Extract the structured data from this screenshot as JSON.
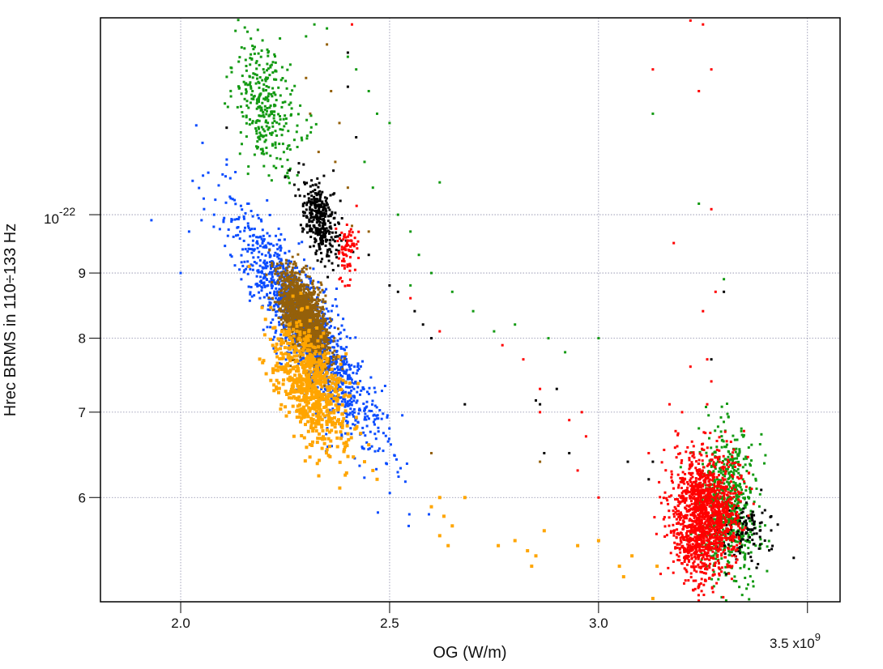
{
  "chart_data": {
    "type": "scatter",
    "title": "",
    "xlabel": "OG (W/m)",
    "ylabel": "Hrec BRMS in 110÷133 Hz",
    "x_scale": "linear",
    "y_scale": "log",
    "x_multiplier_label": "3.5 x10",
    "x_multiplier_exp": "9",
    "y_top_label": "10",
    "y_top_exp": "-22",
    "xlim": [
      1.808,
      3.578
    ],
    "ylim": [
      0.497,
      1.427
    ],
    "y_units": "1e-22",
    "x_units": "1e9 W/m",
    "grid": true,
    "x_ticks": [
      {
        "value": 2.0,
        "label": "2.0"
      },
      {
        "value": 2.5,
        "label": "2.5"
      },
      {
        "value": 3.0,
        "label": "3.0"
      }
    ],
    "y_ticks": [
      {
        "value": 1.0,
        "label": ""
      },
      {
        "value": 0.9,
        "label": "9"
      },
      {
        "value": 0.8,
        "label": "8"
      },
      {
        "value": 0.7,
        "label": "7"
      },
      {
        "value": 0.6,
        "label": "6"
      }
    ],
    "series": [
      {
        "name": "blue",
        "color": "#0a4cff",
        "marker_size": 3,
        "clusters": [
          {
            "cx": 2.3,
            "cy": 0.815,
            "sx": 0.085,
            "sly": 0.045,
            "rho": -0.88,
            "n": 1500
          }
        ],
        "points": [
          [
            1.93,
            0.99
          ],
          [
            2.05,
            0.99
          ],
          [
            2.08,
            1.0
          ],
          [
            2.12,
            1.03
          ],
          [
            2.0,
            0.9
          ],
          [
            2.02,
            0.97
          ],
          [
            2.16,
            1.02
          ]
        ]
      },
      {
        "name": "brown",
        "color": "#94600a",
        "marker_size": 3,
        "clusters": [
          {
            "cx": 2.295,
            "cy": 0.83,
            "sx": 0.03,
            "sly": 0.018,
            "rho": -0.6,
            "n": 1500
          }
        ],
        "points": [
          [
            2.3,
            1.28
          ],
          [
            2.36,
            1.25
          ],
          [
            2.38,
            1.18
          ],
          [
            2.33,
            1.12
          ],
          [
            2.37,
            1.1
          ],
          [
            2.31,
            1.2
          ],
          [
            2.4,
            1.05
          ],
          [
            2.45,
            0.97
          ],
          [
            2.28,
            0.9
          ],
          [
            2.22,
            0.86
          ],
          [
            2.35,
            1.36
          ],
          [
            2.6,
            0.65
          ],
          [
            2.86,
            0.64
          ],
          [
            2.41,
            0.98
          ]
        ]
      },
      {
        "name": "orange",
        "color": "#ffa500",
        "marker_size": 4,
        "clusters": [
          {
            "cx": 2.31,
            "cy": 0.735,
            "sx": 0.045,
            "sly": 0.025,
            "rho": -0.55,
            "n": 700
          }
        ],
        "points": [
          [
            2.42,
            0.68
          ],
          [
            2.45,
            0.66
          ],
          [
            2.44,
            0.64
          ],
          [
            2.46,
            0.63
          ],
          [
            2.47,
            0.62
          ],
          [
            2.62,
            0.6
          ],
          [
            2.6,
            0.59
          ],
          [
            2.63,
            0.58
          ],
          [
            2.65,
            0.57
          ],
          [
            2.68,
            0.6
          ],
          [
            2.62,
            0.56
          ],
          [
            2.76,
            0.55
          ],
          [
            2.8,
            0.555
          ],
          [
            2.83,
            0.545
          ],
          [
            2.85,
            0.54
          ],
          [
            2.84,
            0.53
          ],
          [
            2.87,
            0.565
          ],
          [
            2.95,
            0.55
          ],
          [
            3.0,
            0.555
          ],
          [
            3.05,
            0.53
          ],
          [
            3.06,
            0.52
          ],
          [
            3.08,
            0.54
          ],
          [
            3.14,
            0.53
          ],
          [
            3.13,
            0.5
          ],
          [
            2.64,
            0.55
          ]
        ]
      },
      {
        "name": "green",
        "color": "#139a13",
        "marker_size": 3,
        "clusters": [
          {
            "cx": 2.2,
            "cy": 1.215,
            "sx": 0.04,
            "sly": 0.025,
            "rho": -0.3,
            "n": 330
          },
          {
            "cx": 3.31,
            "cy": 0.59,
            "sx": 0.035,
            "sly": 0.03,
            "rho": 0,
            "n": 650
          }
        ],
        "points": [
          [
            2.3,
            1.38
          ],
          [
            2.35,
            1.4
          ],
          [
            2.32,
            1.41
          ],
          [
            2.4,
            1.33
          ],
          [
            2.42,
            1.3
          ],
          [
            2.45,
            1.25
          ],
          [
            2.47,
            1.2
          ],
          [
            2.5,
            1.18
          ],
          [
            2.44,
            1.1
          ],
          [
            2.46,
            1.05
          ],
          [
            2.52,
            1.0
          ],
          [
            2.55,
            0.97
          ],
          [
            2.57,
            0.93
          ],
          [
            2.6,
            0.9
          ],
          [
            2.62,
            1.06
          ],
          [
            2.65,
            0.87
          ],
          [
            2.7,
            0.84
          ],
          [
            2.75,
            0.81
          ],
          [
            2.8,
            0.82
          ],
          [
            2.88,
            0.8
          ],
          [
            2.92,
            0.78
          ],
          [
            3.0,
            0.8
          ],
          [
            3.13,
            1.2
          ],
          [
            3.24,
            1.02
          ],
          [
            3.3,
            0.89
          ],
          [
            2.55,
            0.88
          ]
        ]
      },
      {
        "name": "black",
        "color": "#000000",
        "marker_size": 3,
        "clusters": [
          {
            "cx": 2.335,
            "cy": 0.99,
            "sx": 0.022,
            "sly": 0.015,
            "rho": -0.4,
            "n": 350
          },
          {
            "cx": 3.35,
            "cy": 0.565,
            "sx": 0.03,
            "sly": 0.012,
            "rho": 0,
            "n": 110
          }
        ],
        "points": [
          [
            2.11,
            1.17
          ],
          [
            2.25,
            1.07
          ],
          [
            2.42,
            1.15
          ],
          [
            2.4,
            1.26
          ],
          [
            2.45,
            0.93
          ],
          [
            2.5,
            0.88
          ],
          [
            2.52,
            0.87
          ],
          [
            2.56,
            0.84
          ],
          [
            2.58,
            0.82
          ],
          [
            2.6,
            0.8
          ],
          [
            2.68,
            0.71
          ],
          [
            2.85,
            0.715
          ],
          [
            2.86,
            0.71
          ],
          [
            2.9,
            0.73
          ],
          [
            2.93,
            0.65
          ],
          [
            2.87,
            0.65
          ],
          [
            3.07,
            0.64
          ],
          [
            3.13,
            0.64
          ],
          [
            3.12,
            0.62
          ],
          [
            3.27,
            0.77
          ],
          [
            3.3,
            0.87
          ],
          [
            2.4,
            1.34
          ]
        ]
      },
      {
        "name": "red",
        "color": "#ff0000",
        "marker_size": 3,
        "clusters": [
          {
            "cx": 2.4,
            "cy": 0.94,
            "sx": 0.012,
            "sly": 0.01,
            "rho": 0,
            "n": 80
          },
          {
            "cx": 3.255,
            "cy": 0.58,
            "sx": 0.04,
            "sly": 0.025,
            "rho": 0,
            "n": 1400
          }
        ],
        "points": [
          [
            2.41,
            1.41
          ],
          [
            2.4,
            0.88
          ],
          [
            2.38,
            0.89
          ],
          [
            2.55,
            0.86
          ],
          [
            2.62,
            0.81
          ],
          [
            2.77,
            0.79
          ],
          [
            2.82,
            0.77
          ],
          [
            2.86,
            0.73
          ],
          [
            2.93,
            0.69
          ],
          [
            2.96,
            0.7
          ],
          [
            2.97,
            0.67
          ],
          [
            3.0,
            0.6
          ],
          [
            2.95,
            0.63
          ],
          [
            2.86,
            0.7
          ],
          [
            3.13,
            1.3
          ],
          [
            3.22,
            1.42
          ],
          [
            3.25,
            1.41
          ],
          [
            3.27,
            1.3
          ],
          [
            3.24,
            1.25
          ],
          [
            3.18,
            0.95
          ],
          [
            3.27,
            1.01
          ],
          [
            3.28,
            0.87
          ],
          [
            3.25,
            0.84
          ],
          [
            3.26,
            0.77
          ],
          [
            3.22,
            0.76
          ],
          [
            3.27,
            0.74
          ],
          [
            3.26,
            0.71
          ],
          [
            3.17,
            0.71
          ],
          [
            3.12,
            0.65
          ],
          [
            3.2,
            0.7
          ]
        ]
      }
    ]
  }
}
